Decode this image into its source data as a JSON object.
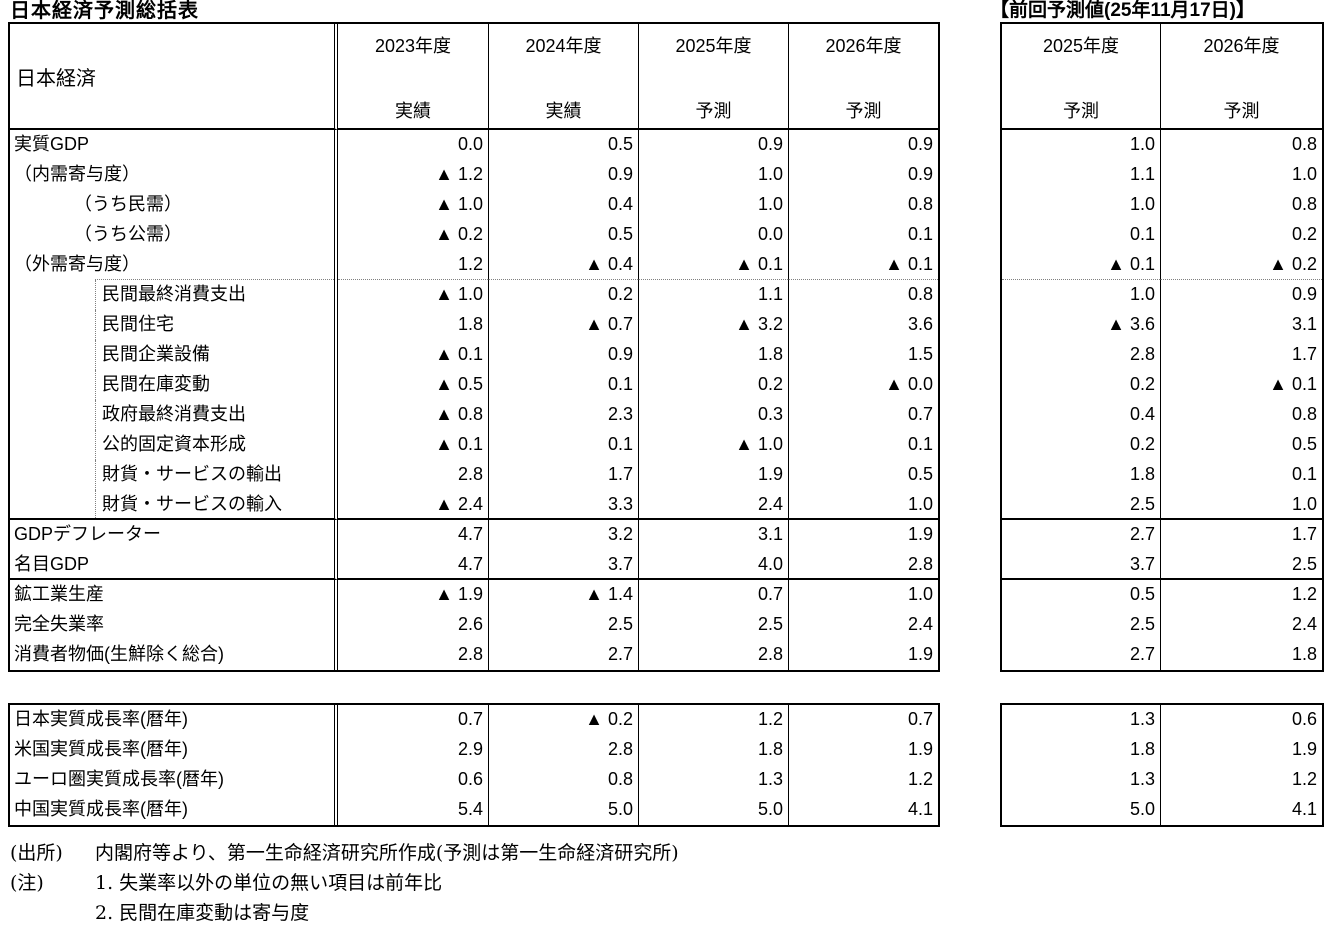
{
  "page": {
    "title": "日本経済予測総括表",
    "prev_header": "【前回予測値(25年11月17日)】"
  },
  "main_table": {
    "corner_label": "日本経済",
    "columns": [
      {
        "year": "2023年度",
        "type": "実績"
      },
      {
        "year": "2024年度",
        "type": "実績"
      },
      {
        "year": "2025年度",
        "type": "予測"
      },
      {
        "year": "2026年度",
        "type": "予測"
      }
    ],
    "prev_columns": [
      {
        "year": "2025年度",
        "type": "予測"
      },
      {
        "year": "2026年度",
        "type": "予測"
      }
    ],
    "rows": [
      {
        "label": "実質GDP",
        "indent": 0,
        "values": [
          "0.0",
          "0.5",
          "0.9",
          "0.9"
        ],
        "prev": [
          "1.0",
          "0.8"
        ]
      },
      {
        "label": "（内需寄与度）",
        "indent": 0,
        "values": [
          "▲ 1.2",
          "0.9",
          "1.0",
          "0.9"
        ],
        "prev": [
          "1.1",
          "1.0"
        ]
      },
      {
        "label": "（うち民需）",
        "indent": 1,
        "values": [
          "▲ 1.0",
          "0.4",
          "1.0",
          "0.8"
        ],
        "prev": [
          "1.0",
          "0.8"
        ]
      },
      {
        "label": "（うち公需）",
        "indent": 1,
        "values": [
          "▲ 0.2",
          "0.5",
          "0.0",
          "0.1"
        ],
        "prev": [
          "0.1",
          "0.2"
        ]
      },
      {
        "label": "（外需寄与度）",
        "indent": 0,
        "values": [
          "1.2",
          "▲ 0.4",
          "▲ 0.1",
          "▲ 0.1"
        ],
        "prev": [
          "▲ 0.1",
          "▲ 0.2"
        ],
        "border": "dotted"
      },
      {
        "label": "民間最終消費支出",
        "indent": 2,
        "dotted_left": true,
        "values": [
          "▲ 1.0",
          "0.2",
          "1.1",
          "0.8"
        ],
        "prev": [
          "1.0",
          "0.9"
        ]
      },
      {
        "label": "民間住宅",
        "indent": 2,
        "dotted_left": true,
        "values": [
          "1.8",
          "▲ 0.7",
          "▲ 3.2",
          "3.6"
        ],
        "prev": [
          "▲ 3.6",
          "3.1"
        ]
      },
      {
        "label": "民間企業設備",
        "indent": 2,
        "dotted_left": true,
        "values": [
          "▲ 0.1",
          "0.9",
          "1.8",
          "1.5"
        ],
        "prev": [
          "2.8",
          "1.7"
        ]
      },
      {
        "label": "民間在庫変動",
        "indent": 2,
        "dotted_left": true,
        "values": [
          "▲ 0.5",
          "0.1",
          "0.2",
          "▲ 0.0"
        ],
        "prev": [
          "0.2",
          "▲ 0.1"
        ]
      },
      {
        "label": "政府最終消費支出",
        "indent": 2,
        "dotted_left": true,
        "values": [
          "▲ 0.8",
          "2.3",
          "0.3",
          "0.7"
        ],
        "prev": [
          "0.4",
          "0.8"
        ]
      },
      {
        "label": "公的固定資本形成",
        "indent": 2,
        "dotted_left": true,
        "values": [
          "▲ 0.1",
          "0.1",
          "▲ 1.0",
          "0.1"
        ],
        "prev": [
          "0.2",
          "0.5"
        ]
      },
      {
        "label": "財貨・サービスの輸出",
        "indent": 2,
        "dotted_left": true,
        "values": [
          "2.8",
          "1.7",
          "1.9",
          "0.5"
        ],
        "prev": [
          "1.8",
          "0.1"
        ]
      },
      {
        "label": "財貨・サービスの輸入",
        "indent": 2,
        "dotted_left": true,
        "values": [
          "▲ 2.4",
          "3.3",
          "2.4",
          "1.0"
        ],
        "prev": [
          "2.5",
          "1.0"
        ],
        "border": "solid"
      },
      {
        "label": "GDPデフレーター",
        "indent": 0,
        "values": [
          "4.7",
          "3.2",
          "3.1",
          "1.9"
        ],
        "prev": [
          "2.7",
          "1.7"
        ]
      },
      {
        "label": "名目GDP",
        "indent": 0,
        "values": [
          "4.7",
          "3.7",
          "4.0",
          "2.8"
        ],
        "prev": [
          "3.7",
          "2.5"
        ],
        "border": "solid"
      },
      {
        "label": "鉱工業生産",
        "indent": 0,
        "values": [
          "▲ 1.9",
          "▲ 1.4",
          "0.7",
          "1.0"
        ],
        "prev": [
          "0.5",
          "1.2"
        ]
      },
      {
        "label": "完全失業率",
        "indent": 0,
        "values": [
          "2.6",
          "2.5",
          "2.5",
          "2.4"
        ],
        "prev": [
          "2.5",
          "2.4"
        ]
      },
      {
        "label": "消費者物価(生鮮除く総合)",
        "indent": 0,
        "values": [
          "2.8",
          "2.7",
          "2.8",
          "1.9"
        ],
        "prev": [
          "2.7",
          "1.8"
        ]
      }
    ]
  },
  "world_table": {
    "rows": [
      {
        "label": "日本実質成長率(暦年)",
        "values": [
          "0.7",
          "▲ 0.2",
          "1.2",
          "0.7"
        ],
        "prev": [
          "1.3",
          "0.6"
        ]
      },
      {
        "label": "米国実質成長率(暦年)",
        "values": [
          "2.9",
          "2.8",
          "1.8",
          "1.9"
        ],
        "prev": [
          "1.8",
          "1.9"
        ]
      },
      {
        "label": "ユーロ圏実質成長率(暦年)",
        "values": [
          "0.6",
          "0.8",
          "1.3",
          "1.2"
        ],
        "prev": [
          "1.3",
          "1.2"
        ]
      },
      {
        "label": "中国実質成長率(暦年)",
        "values": [
          "5.4",
          "5.0",
          "5.0",
          "4.1"
        ],
        "prev": [
          "5.0",
          "4.1"
        ]
      }
    ]
  },
  "footnotes": [
    {
      "tag": "(出所)",
      "text": "内閣府等より、第一生命経済研究所作成(予測は第一生命経済研究所)"
    },
    {
      "tag": "(注)",
      "text": "1. 失業率以外の単位の無い項目は前年比"
    },
    {
      "tag": "",
      "text": "2. 民間在庫変動は寄与度"
    }
  ]
}
